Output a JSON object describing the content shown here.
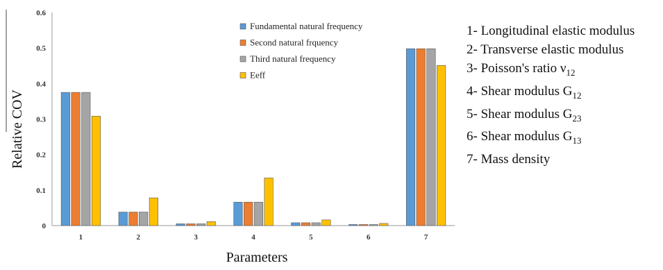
{
  "chart_data": {
    "type": "bar",
    "xlabel": "Parameters",
    "ylabel": "Relative COV",
    "ylim": [
      0,
      0.6
    ],
    "yticks": [
      "0",
      "0.1",
      "0.2",
      "0.3",
      "0.4",
      "0.5",
      "0.6"
    ],
    "categories": [
      "1",
      "2",
      "3",
      "4",
      "5",
      "6",
      "7"
    ],
    "series": [
      {
        "name": "Fundamental natural frequency",
        "color": "#5b9bd5",
        "values": [
          0.375,
          0.038,
          0.005,
          0.066,
          0.008,
          0.003,
          0.498
        ]
      },
      {
        "name": "Second natural frquency",
        "color": "#ed7d31",
        "values": [
          0.375,
          0.038,
          0.005,
          0.066,
          0.008,
          0.003,
          0.498
        ]
      },
      {
        "name": "Third natural frequency",
        "color": "#a5a5a5",
        "values": [
          0.375,
          0.038,
          0.005,
          0.066,
          0.008,
          0.003,
          0.498
        ]
      },
      {
        "name": "Eeff",
        "color": "#ffc000",
        "values": [
          0.308,
          0.078,
          0.011,
          0.134,
          0.016,
          0.006,
          0.451
        ]
      }
    ],
    "legend_position": "top-right",
    "grid": false
  },
  "parameter_list": [
    {
      "text": "1- Longitudinal elastic modulus",
      "sub": ""
    },
    {
      "text": "2- Transverse elastic modulus",
      "sub": ""
    },
    {
      "text": "3- Poisson's ratio ν",
      "sub": "12"
    },
    {
      "text": "4- Shear modulus G",
      "sub": "12"
    },
    {
      "text": "5- Shear modulus G",
      "sub": "23"
    },
    {
      "text": "6- Shear modulus G",
      "sub": "13"
    },
    {
      "text": "7- Mass density",
      "sub": ""
    }
  ]
}
